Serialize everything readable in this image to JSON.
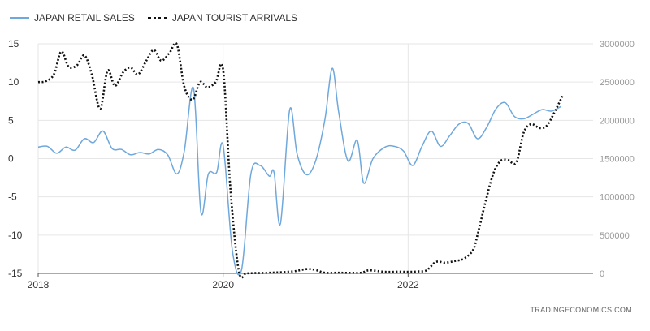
{
  "legend": {
    "items": [
      {
        "label": "JAPAN RETAIL SALES",
        "color": "#6fa8dc",
        "style": "solid"
      },
      {
        "label": "JAPAN TOURIST ARRIVALS",
        "color": "#111111",
        "style": "dotted"
      }
    ]
  },
  "source": "TRADINGECONOMICS.COM",
  "chart_data": {
    "type": "line",
    "title": "",
    "xlabel": "",
    "ylabel": "",
    "grid": true,
    "legend_position": "top-left",
    "x_ticks": [
      "2018",
      "2020",
      "2022"
    ],
    "x_range": [
      2018.0,
      2024.0
    ],
    "left_axis": {
      "ticks": [
        15,
        10,
        5,
        0,
        -5,
        -10,
        -15
      ],
      "range": [
        -15,
        15
      ]
    },
    "right_axis": {
      "ticks": [
        "3000000",
        "2500000",
        "2000000",
        "1500000",
        "1000000",
        "500000",
        "0"
      ],
      "range": [
        0,
        3000000
      ]
    },
    "series": [
      {
        "name": "JAPAN RETAIL SALES",
        "axis": "left",
        "color": "#6fa8dc",
        "x": [
          2018.0,
          2018.1,
          2018.2,
          2018.3,
          2018.4,
          2018.5,
          2018.6,
          2018.7,
          2018.8,
          2018.9,
          2019.0,
          2019.1,
          2019.2,
          2019.3,
          2019.4,
          2019.5,
          2019.58,
          2019.68,
          2019.76,
          2019.84,
          2019.93,
          2020.0,
          2020.1,
          2020.2,
          2020.3,
          2020.4,
          2020.5,
          2020.55,
          2020.62,
          2020.72,
          2020.8,
          2020.9,
          2021.0,
          2021.1,
          2021.18,
          2021.25,
          2021.35,
          2021.45,
          2021.52,
          2021.62,
          2021.75,
          2021.85,
          2021.95,
          2022.05,
          2022.15,
          2022.25,
          2022.35,
          2022.45,
          2022.55,
          2022.65,
          2022.75,
          2022.85,
          2022.95,
          2023.05,
          2023.15,
          2023.25,
          2023.35,
          2023.45,
          2023.55,
          2023.65
        ],
        "values": [
          1.5,
          1.6,
          0.7,
          1.5,
          1.1,
          2.6,
          2.1,
          3.6,
          1.3,
          1.2,
          0.5,
          0.8,
          0.6,
          1.2,
          0.5,
          -2.0,
          1.0,
          9.2,
          -7.0,
          -2.0,
          -1.8,
          1.7,
          -12.0,
          -14.5,
          -2.0,
          -0.9,
          -2.3,
          -1.8,
          -8.5,
          6.4,
          0.6,
          -2.1,
          -0.3,
          5.1,
          11.8,
          6.0,
          -0.3,
          2.4,
          -3.2,
          0.0,
          1.5,
          1.6,
          1.0,
          -0.9,
          1.6,
          3.6,
          1.6,
          3.0,
          4.5,
          4.6,
          2.6,
          4.1,
          6.5,
          7.3,
          5.5,
          5.2,
          5.8,
          6.4,
          6.2,
          6.8
        ]
      },
      {
        "name": "JAPAN TOURIST ARRIVALS",
        "axis": "right",
        "color": "#111111",
        "x": [
          2018.0,
          2018.08,
          2018.17,
          2018.25,
          2018.33,
          2018.42,
          2018.5,
          2018.58,
          2018.67,
          2018.75,
          2018.83,
          2018.92,
          2019.0,
          2019.08,
          2019.17,
          2019.25,
          2019.33,
          2019.42,
          2019.5,
          2019.58,
          2019.67,
          2019.75,
          2019.83,
          2019.92,
          2020.0,
          2020.08,
          2020.17,
          2020.25,
          2020.33,
          2020.5,
          2020.75,
          2020.9,
          2021.0,
          2021.1,
          2021.25,
          2021.4,
          2021.5,
          2021.58,
          2021.75,
          2021.9,
          2022.0,
          2022.1,
          2022.2,
          2022.3,
          2022.4,
          2022.5,
          2022.6,
          2022.7,
          2022.75,
          2022.83,
          2022.92,
          2023.0,
          2023.08,
          2023.17,
          2023.25,
          2023.33,
          2023.42,
          2023.5,
          2023.58,
          2023.67
        ],
        "values": [
          2500000,
          2510000,
          2600000,
          2900000,
          2700000,
          2720000,
          2850000,
          2600000,
          2150000,
          2650000,
          2450000,
          2630000,
          2690000,
          2600000,
          2780000,
          2920000,
          2780000,
          2880000,
          2990000,
          2440000,
          2270000,
          2500000,
          2430000,
          2500000,
          2660000,
          1080000,
          31000,
          3000,
          3900,
          8000,
          25000,
          56000,
          45000,
          8000,
          9000,
          7000,
          10000,
          40000,
          20000,
          22000,
          20000,
          25000,
          40000,
          150000,
          140000,
          160000,
          190000,
          300000,
          500000,
          900000,
          1300000,
          1470000,
          1480000,
          1450000,
          1840000,
          1950000,
          1900000,
          1930000,
          2100000,
          2320000
        ]
      }
    ]
  }
}
